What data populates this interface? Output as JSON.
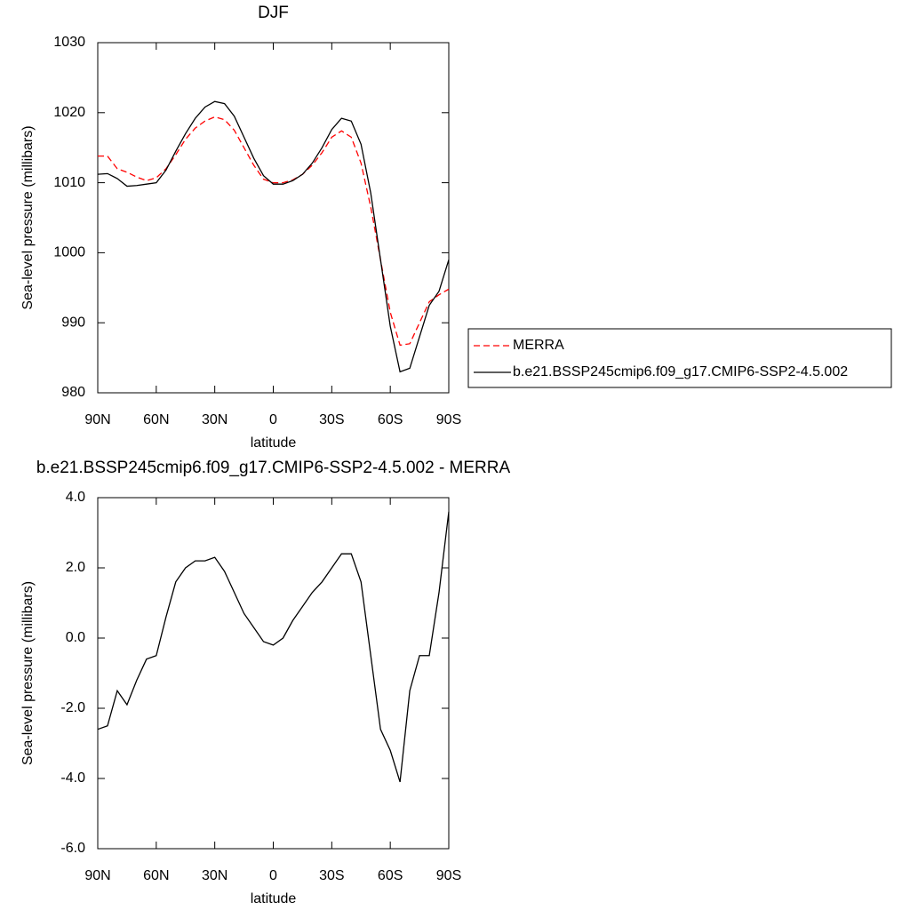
{
  "chart_data": [
    {
      "type": "line",
      "title": "DJF",
      "xlabel": "latitude",
      "ylabel": "Sea-level pressure (millibars)",
      "x": [
        90,
        85,
        80,
        75,
        70,
        65,
        60,
        55,
        50,
        45,
        40,
        35,
        30,
        25,
        20,
        15,
        10,
        5,
        0,
        -5,
        -10,
        -15,
        -20,
        -25,
        -30,
        -35,
        -40,
        -45,
        -50,
        -55,
        -60,
        -65,
        -70,
        -75,
        -80,
        -85,
        -90
      ],
      "series": [
        {
          "name": "MERRA",
          "color": "#ff0000",
          "dashed": true,
          "values": [
            1013.8,
            1013.8,
            1012.0,
            1011.5,
            1010.8,
            1010.3,
            1010.7,
            1012.0,
            1014.0,
            1016.2,
            1017.8,
            1018.8,
            1019.4,
            1019.0,
            1017.5,
            1015.0,
            1012.5,
            1010.5,
            1010.0,
            1010.0,
            1010.4,
            1011.2,
            1012.5,
            1014.3,
            1016.5,
            1017.4,
            1016.5,
            1012.8,
            1006.5,
            999.0,
            991.5,
            986.8,
            987.0,
            990.0,
            993.0,
            994.0,
            994.8
          ]
        },
        {
          "name": "b.e21.BSSP245cmip6.f09_g17.CMIP6-SSP2-4.5.002",
          "color": "#000000",
          "dashed": false,
          "values": [
            1011.2,
            1011.3,
            1010.6,
            1009.5,
            1009.6,
            1009.8,
            1010.0,
            1011.8,
            1014.5,
            1017.0,
            1019.2,
            1020.8,
            1021.6,
            1021.3,
            1019.5,
            1016.5,
            1013.5,
            1011.0,
            1009.8,
            1009.8,
            1010.3,
            1011.2,
            1012.8,
            1015.0,
            1017.6,
            1019.2,
            1018.8,
            1015.5,
            1008.5,
            999.0,
            989.5,
            983.0,
            983.5,
            988.0,
            992.5,
            994.5,
            999.0
          ]
        }
      ],
      "xlim": [
        90,
        -90
      ],
      "xticks": [
        {
          "value": 90,
          "label": "90N"
        },
        {
          "value": 60,
          "label": "60N"
        },
        {
          "value": 30,
          "label": "30N"
        },
        0,
        {
          "value": -30,
          "label": "30S"
        },
        {
          "value": -60,
          "label": "60S"
        },
        {
          "value": -90,
          "label": "90S"
        }
      ],
      "ylim": [
        980,
        1030
      ],
      "yticks": [
        980,
        990,
        1000,
        1010,
        1020,
        1030
      ],
      "legend": "right"
    },
    {
      "type": "line",
      "title": "b.e21.BSSP245cmip6.f09_g17.CMIP6-SSP2-4.5.002 - MERRA",
      "xlabel": "latitude",
      "ylabel": "Sea-level pressure (millibars)",
      "x": [
        90,
        85,
        80,
        75,
        70,
        65,
        60,
        55,
        50,
        45,
        40,
        35,
        30,
        25,
        20,
        15,
        10,
        5,
        0,
        -5,
        -10,
        -15,
        -20,
        -25,
        -30,
        -35,
        -40,
        -45,
        -50,
        -55,
        -60,
        -65,
        -70,
        -75,
        -80,
        -85,
        -90
      ],
      "series": [
        {
          "color": "#000000",
          "dashed": false,
          "values": [
            -2.6,
            -2.5,
            -1.5,
            -1.9,
            -1.2,
            -0.6,
            -0.5,
            0.6,
            1.6,
            2.0,
            2.2,
            2.2,
            2.3,
            1.9,
            1.3,
            0.7,
            0.3,
            -0.1,
            -0.2,
            0.0,
            0.5,
            0.9,
            1.3,
            1.6,
            2.0,
            2.4,
            2.4,
            1.6,
            -0.5,
            -2.6,
            -3.2,
            -4.1,
            -1.5,
            -0.5,
            -0.5,
            1.3,
            3.6
          ]
        }
      ],
      "xlim": [
        90,
        -90
      ],
      "xticks": [
        {
          "value": 90,
          "label": "90N"
        },
        {
          "value": 60,
          "label": "60N"
        },
        {
          "value": 30,
          "label": "30N"
        },
        0,
        {
          "value": -30,
          "label": "30S"
        },
        {
          "value": -60,
          "label": "60S"
        },
        {
          "value": -90,
          "label": "90S"
        }
      ],
      "ylim": [
        -6,
        4
      ],
      "yticks": [
        {
          "value": -6,
          "label": "-6.0"
        },
        {
          "value": -4,
          "label": "-4.0"
        },
        {
          "value": -2,
          "label": "-2.0"
        },
        {
          "value": 0,
          "label": "0.0"
        },
        {
          "value": 2,
          "label": "2.0"
        },
        {
          "value": 4,
          "label": "4.0"
        }
      ]
    }
  ]
}
